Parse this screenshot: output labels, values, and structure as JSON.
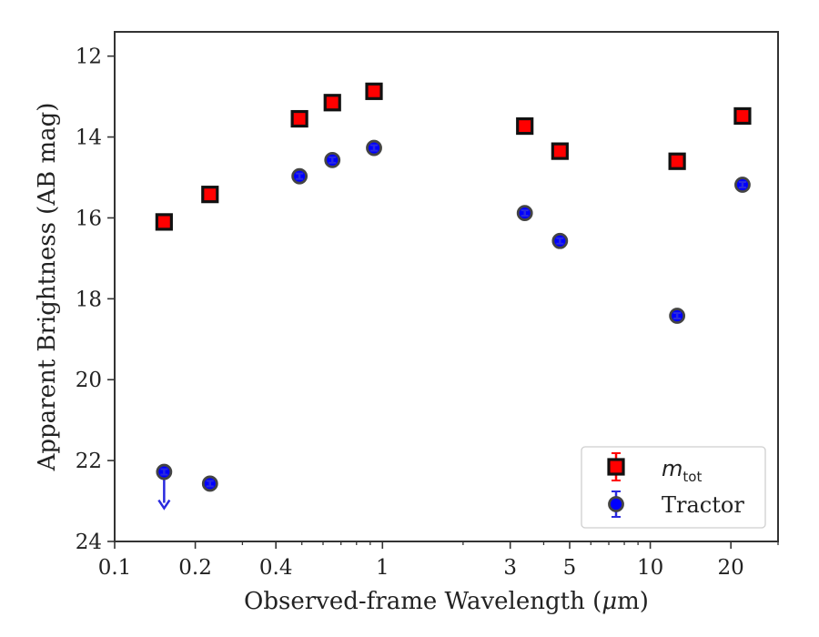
{
  "chart_data": {
    "type": "scatter",
    "xlabel_prefix": "Observed-frame Wavelength (",
    "xlabel_unit": "μ",
    "xlabel_suffix": "m)",
    "ylabel": "Apparent Brightness (AB mag)",
    "x_scale": "log",
    "xlim": [
      0.1,
      30
    ],
    "ylim": [
      24,
      11.4
    ],
    "y_inverted": true,
    "xticks": [
      0.1,
      0.2,
      0.4,
      1,
      3,
      5,
      10,
      20
    ],
    "xtick_labels": [
      "0.1",
      "0.2",
      "0.4",
      "1",
      "3",
      "5",
      "10",
      "20"
    ],
    "minor_xticks": [
      0.3,
      0.5,
      0.6,
      0.7,
      0.8,
      0.9,
      2,
      4,
      6,
      7,
      8,
      9,
      30
    ],
    "yticks": [
      12,
      14,
      16,
      18,
      20,
      22,
      24
    ],
    "ytick_labels": [
      "12",
      "14",
      "16",
      "18",
      "20",
      "22",
      "24"
    ],
    "legend_position": "lower right",
    "series": [
      {
        "name": "m_tot",
        "legend_main": "m",
        "legend_sub": "tot",
        "marker": "square",
        "color": "#ff0000",
        "edge_color": "#111111",
        "errorbar_color": "#ff0000",
        "points": [
          {
            "x": 0.153,
            "y": 16.1
          },
          {
            "x": 0.227,
            "y": 15.42
          },
          {
            "x": 0.49,
            "y": 13.55
          },
          {
            "x": 0.65,
            "y": 13.15
          },
          {
            "x": 0.93,
            "y": 12.87
          },
          {
            "x": 3.4,
            "y": 13.73
          },
          {
            "x": 4.6,
            "y": 14.35
          },
          {
            "x": 12.6,
            "y": 14.6
          },
          {
            "x": 22.1,
            "y": 13.48
          }
        ]
      },
      {
        "name": "Tractor",
        "legend_main": "Tractor",
        "marker": "circle",
        "color": "#0000ff",
        "edge_color": "#444444",
        "errorbar_color": "#2a2adf",
        "points": [
          {
            "x": 0.153,
            "y": 22.28,
            "upper_limit": true
          },
          {
            "x": 0.227,
            "y": 22.57
          },
          {
            "x": 0.49,
            "y": 14.97
          },
          {
            "x": 0.65,
            "y": 14.57
          },
          {
            "x": 0.93,
            "y": 14.27
          },
          {
            "x": 3.4,
            "y": 15.88
          },
          {
            "x": 4.6,
            "y": 16.57
          },
          {
            "x": 12.6,
            "y": 18.42
          },
          {
            "x": 22.1,
            "y": 15.18
          }
        ]
      }
    ]
  }
}
